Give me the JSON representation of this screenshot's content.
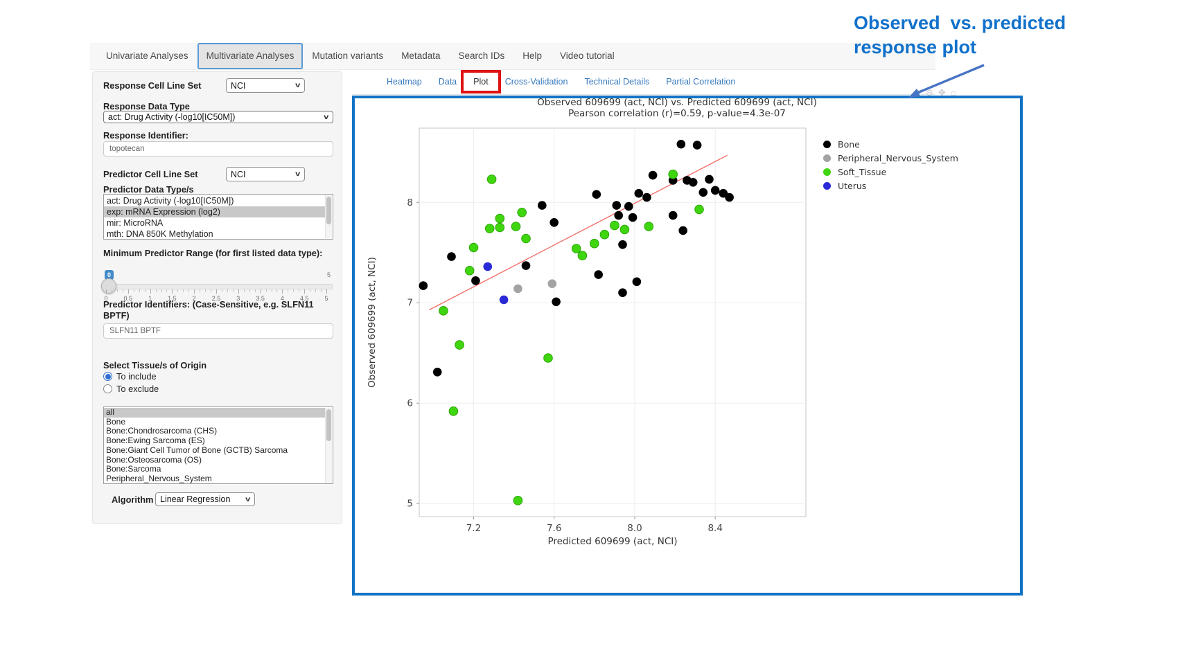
{
  "navbar": {
    "items": [
      "Univariate Analyses",
      "Multivariate Analyses",
      "Mutation variants",
      "Metadata",
      "Search IDs",
      "Help",
      "Video tutorial"
    ],
    "active": "Multivariate Analyses"
  },
  "sidebar": {
    "response_cell_line_set_label": "Response Cell Line Set",
    "response_cell_line_set_value": "NCI",
    "response_data_type_label": "Response Data Type",
    "response_data_type_value": "act: Drug Activity (-log10[IC50M])",
    "response_identifier_label": "Response Identifier:",
    "response_identifier_value": "topotecan",
    "predictor_cell_line_set_label": "Predictor Cell Line Set",
    "predictor_cell_line_set_value": "NCI",
    "predictor_data_types_label": "Predictor Data Type/s",
    "predictor_data_types_options": [
      "act: Drug Activity (-log10[IC50M])",
      "exp: mRNA Expression (log2)",
      "mir: MicroRNA",
      "mth: DNA 850K Methylation"
    ],
    "predictor_data_types_selected": "exp: mRNA Expression (log2)",
    "min_predictor_range_label": "Minimum Predictor Range (for first listed data type):",
    "slider": {
      "value": "0",
      "max_label": "5",
      "tick_labels": [
        "0",
        "0.5",
        "1",
        "1.5",
        "2",
        "2.5",
        "3",
        "3.5",
        "4",
        "4.5",
        "5"
      ]
    },
    "predictor_identifiers_label": "Predictor Identifiers: (Case-Sensitive, e.g. SLFN11 BPTF)",
    "predictor_identifiers_value": "SLFN11 BPTF",
    "tissue_label": "Select Tissue/s of Origin",
    "tissue_radios": [
      {
        "label": "To include",
        "selected": true
      },
      {
        "label": "To exclude",
        "selected": false
      }
    ],
    "tissue_options": [
      "all",
      "Bone",
      "Bone:Chondrosarcoma (CHS)",
      "Bone:Ewing Sarcoma (ES)",
      "Bone:Giant Cell Tumor of Bone (GCTB) Sarcoma",
      "Bone:Osteosarcoma (OS)",
      "Bone:Sarcoma",
      "Peripheral_Nervous_System"
    ],
    "tissue_selected": "all",
    "algorithm_label": "Algorithm",
    "algorithm_value": "Linear Regression"
  },
  "subtabs": {
    "items": [
      "Heatmap",
      "Data",
      "Plot",
      "Cross-Validation",
      "Technical Details",
      "Partial Correlation"
    ],
    "active": "Plot"
  },
  "modebar_icons": [
    "zoom-in-icon",
    "zoom-out-icon",
    "pan-icon",
    "reset-axes-icon"
  ],
  "annotation": {
    "line1": "Observed  vs. predicted",
    "line2": "response plot"
  },
  "colors": {
    "container_border": "#1273c6",
    "annotation_text": "#1171cb",
    "annotation_arrow": "#4673c4",
    "highlight_box": "#e01212",
    "tab_link": "#3578bd",
    "trend_line": "#f06860"
  },
  "chart_data": {
    "type": "scatter",
    "title": "Observed 609699 (act, NCI) vs. Predicted 609699 (act, NCI)",
    "subtitle": "Pearson correlation (r)=0.59, p-value=4.3e-07",
    "xlabel": "Predicted 609699 (act, NCI)",
    "ylabel": "Observed 609699 (act, NCI)",
    "xlim": [
      6.93,
      8.85
    ],
    "ylim": [
      4.87,
      8.74
    ],
    "xticks": [
      7.2,
      7.6,
      8.0,
      8.4
    ],
    "xtick_labels": [
      "7.2",
      "7.6",
      "8.0",
      "8.4"
    ],
    "yticks": [
      5,
      6,
      7,
      8
    ],
    "ytick_labels": [
      "5",
      "6",
      "7",
      "8"
    ],
    "grid": true,
    "legend_position": "right",
    "trend_line": {
      "x1": 6.98,
      "y1": 6.93,
      "x2": 8.46,
      "y2": 8.47,
      "color": "#f06860"
    },
    "series": [
      {
        "name": "Bone",
        "color": "#000000",
        "points": [
          [
            6.95,
            7.17
          ],
          [
            7.02,
            6.31
          ],
          [
            7.09,
            7.46
          ],
          [
            7.21,
            7.22
          ],
          [
            7.46,
            7.37
          ],
          [
            7.54,
            7.97
          ],
          [
            7.6,
            7.8
          ],
          [
            7.61,
            7.01
          ],
          [
            7.82,
            7.28
          ],
          [
            7.94,
            7.1
          ],
          [
            8.01,
            7.21
          ],
          [
            7.81,
            8.08
          ],
          [
            7.91,
            7.97
          ],
          [
            7.92,
            7.87
          ],
          [
            7.97,
            7.96
          ],
          [
            7.99,
            7.85
          ],
          [
            8.02,
            8.09
          ],
          [
            8.06,
            8.05
          ],
          [
            8.09,
            8.27
          ],
          [
            8.19,
            8.22
          ],
          [
            8.26,
            8.22
          ],
          [
            8.29,
            8.2
          ],
          [
            8.37,
            8.23
          ],
          [
            8.23,
            8.58
          ],
          [
            8.31,
            8.57
          ],
          [
            8.19,
            7.87
          ],
          [
            8.24,
            7.72
          ],
          [
            8.34,
            8.1
          ],
          [
            8.4,
            8.12
          ],
          [
            8.44,
            8.09
          ],
          [
            8.47,
            8.05
          ],
          [
            7.94,
            7.58
          ]
        ]
      },
      {
        "name": "Peripheral_Nervous_System",
        "color": "#a3a3a3",
        "points": [
          [
            7.42,
            7.14
          ],
          [
            7.59,
            7.19
          ]
        ]
      },
      {
        "name": "Soft_Tissue",
        "color": "#3fd60f",
        "points": [
          [
            7.29,
            8.23
          ],
          [
            8.19,
            8.28
          ],
          [
            7.44,
            7.9
          ],
          [
            8.32,
            7.93
          ],
          [
            7.33,
            7.84
          ],
          [
            7.28,
            7.74
          ],
          [
            7.33,
            7.75
          ],
          [
            7.41,
            7.76
          ],
          [
            7.46,
            7.64
          ],
          [
            7.2,
            7.55
          ],
          [
            7.18,
            7.32
          ],
          [
            7.05,
            6.92
          ],
          [
            7.9,
            7.77
          ],
          [
            7.95,
            7.73
          ],
          [
            7.85,
            7.68
          ],
          [
            7.8,
            7.59
          ],
          [
            7.71,
            7.54
          ],
          [
            7.74,
            7.47
          ],
          [
            8.07,
            7.76
          ],
          [
            7.13,
            6.58
          ],
          [
            7.57,
            6.45
          ],
          [
            7.1,
            5.92
          ],
          [
            7.42,
            5.03
          ]
        ]
      },
      {
        "name": "Uterus",
        "color": "#2a2ad6",
        "points": [
          [
            7.27,
            7.36
          ],
          [
            7.35,
            7.03
          ]
        ]
      }
    ]
  }
}
